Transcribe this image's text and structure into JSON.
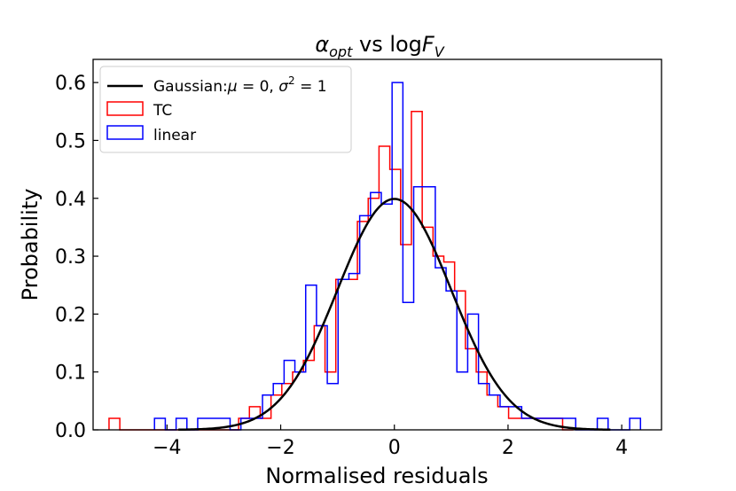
{
  "chart_data": {
    "type": "histogram",
    "title": {
      "symbol": "α",
      "symbol_subscript": "opt",
      "middle": " vs log",
      "var": "F",
      "var_subscript": "V"
    },
    "xlabel": "Normalised residuals",
    "ylabel": "Probability",
    "xlim": [
      -5.3,
      4.7
    ],
    "ylim": [
      0.0,
      0.64
    ],
    "xticks": [
      -4,
      -2,
      0,
      2,
      4
    ],
    "xtick_labels": [
      "−4",
      "−2",
      "0",
      "2",
      "4"
    ],
    "yticks": [
      0.0,
      0.1,
      0.2,
      0.3,
      0.4,
      0.5,
      0.6
    ],
    "ytick_labels": [
      "0.0",
      "0.1",
      "0.2",
      "0.3",
      "0.4",
      "0.5",
      "0.6"
    ],
    "legend": {
      "placement": "upper-left",
      "entries": [
        {
          "id": "gaussian",
          "prefix": "Gaussian:",
          "math1": "μ",
          "text1": " = 0, ",
          "math2": "σ",
          "sup": "2",
          "text2": " = 1"
        },
        {
          "id": "tc",
          "label": "TC"
        },
        {
          "id": "linear",
          "label": "linear"
        }
      ]
    },
    "colors": {
      "gaussian": "#000000",
      "tc": "#ff0000",
      "linear": "#0000ff"
    },
    "gaussian": {
      "mu": 0,
      "sigma": 1
    },
    "series": [
      {
        "name": "TC",
        "type": "step-histogram",
        "bin_edges": [
          -5.02,
          -4.83,
          -4.64,
          -4.45,
          -4.26,
          -4.07,
          -3.88,
          -3.69,
          -3.5,
          -3.31,
          -3.12,
          -2.93,
          -2.74,
          -2.55,
          -2.36,
          -2.17,
          -1.98,
          -1.79,
          -1.6,
          -1.41,
          -1.22,
          -1.03,
          -0.84,
          -0.65,
          -0.46,
          -0.27,
          -0.08,
          0.11,
          0.3,
          0.49,
          0.68,
          0.87,
          1.06,
          1.25,
          1.44,
          1.63,
          1.82,
          2.01,
          2.2,
          2.39,
          2.58,
          2.77,
          2.96,
          3.15
        ],
        "values": [
          0.02,
          0.0,
          0.0,
          0.0,
          0.0,
          0.0,
          0.0,
          0.0,
          0.0,
          0.0,
          0.0,
          0.0,
          0.02,
          0.04,
          0.02,
          0.06,
          0.08,
          0.1,
          0.12,
          0.18,
          0.1,
          0.26,
          0.26,
          0.36,
          0.4,
          0.49,
          0.45,
          0.32,
          0.55,
          0.35,
          0.3,
          0.29,
          0.24,
          0.14,
          0.1,
          0.06,
          0.04,
          0.02,
          0.02,
          0.02,
          0.02,
          0.02,
          0.0
        ]
      },
      {
        "name": "linear",
        "type": "step-histogram",
        "bin_edges": [
          -4.22,
          -4.03,
          -3.84,
          -3.65,
          -3.46,
          -3.27,
          -3.08,
          -2.89,
          -2.7,
          -2.51,
          -2.32,
          -2.13,
          -1.94,
          -1.75,
          -1.56,
          -1.37,
          -1.18,
          -0.99,
          -0.8,
          -0.61,
          -0.42,
          -0.23,
          -0.04,
          0.15,
          0.34,
          0.53,
          0.72,
          0.91,
          1.1,
          1.29,
          1.48,
          1.67,
          1.86,
          2.05,
          2.24,
          2.43,
          2.62,
          2.81,
          3.0,
          3.19,
          3.38,
          3.57,
          3.76,
          3.95,
          4.14,
          4.33
        ],
        "values": [
          0.02,
          0.0,
          0.02,
          0.0,
          0.02,
          0.02,
          0.02,
          0.0,
          0.02,
          0.02,
          0.06,
          0.08,
          0.12,
          0.1,
          0.25,
          0.18,
          0.08,
          0.26,
          0.27,
          0.37,
          0.41,
          0.39,
          0.6,
          0.22,
          0.42,
          0.42,
          0.28,
          0.24,
          0.1,
          0.2,
          0.08,
          0.06,
          0.04,
          0.04,
          0.02,
          0.02,
          0.02,
          0.02,
          0.02,
          0.0,
          0.0,
          0.02,
          0.0,
          0.0,
          0.02
        ]
      }
    ]
  }
}
